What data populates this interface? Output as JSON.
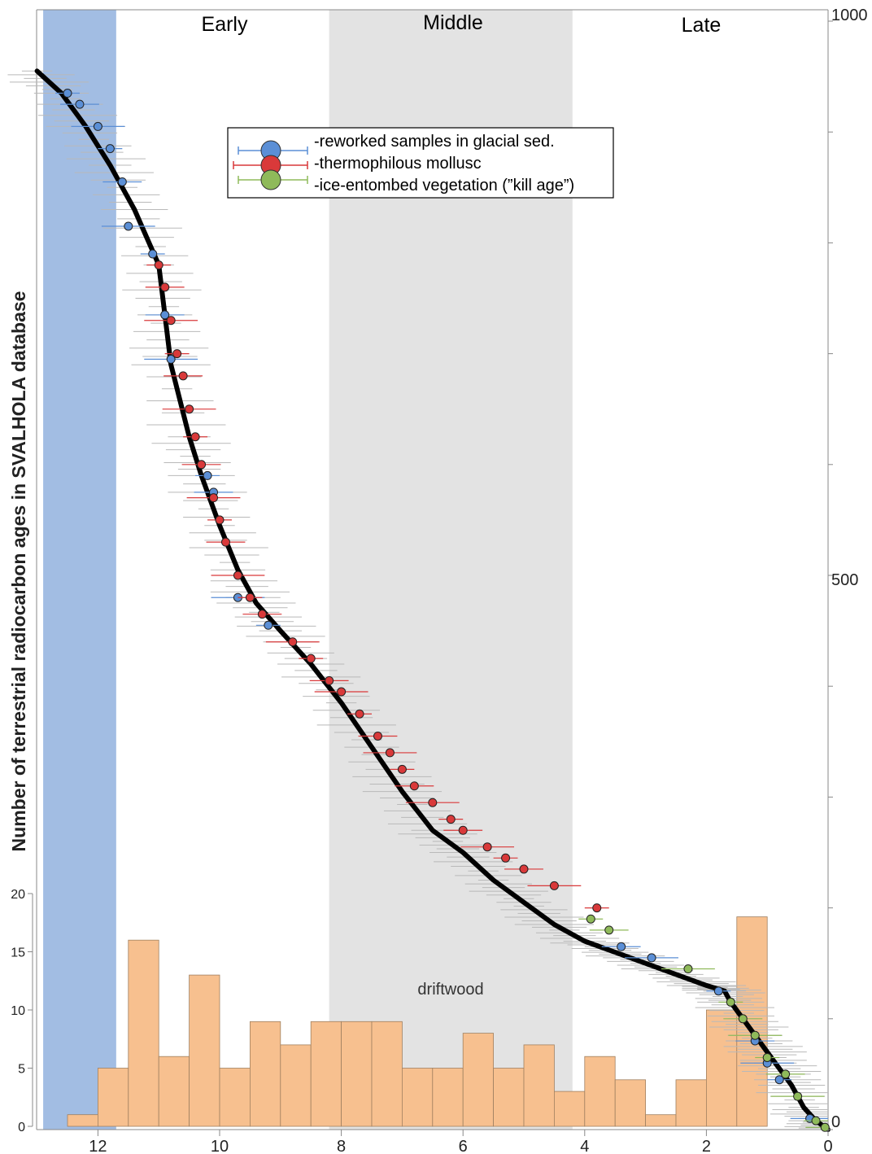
{
  "chart_data": {
    "type": "scatter",
    "ylabel": "Number of terrestrial radiocarbon ages in SVALHOLA database",
    "x_ticks": [
      "12",
      "10",
      "8",
      "6",
      "4",
      "2",
      "0"
    ],
    "xlim": [
      13,
      0
    ],
    "right_y_ticks": [
      "1000",
      "500",
      "0"
    ],
    "ylim": [
      0,
      1000
    ],
    "hist_y_ticks": [
      "0",
      "5",
      "10",
      "15",
      "20"
    ],
    "periods": [
      {
        "label": "Early",
        "from": 13,
        "to": 8.2
      },
      {
        "label": "Middle",
        "from": 8.2,
        "to": 4.2
      },
      {
        "label": "Late",
        "from": 4.2,
        "to": 0
      }
    ],
    "blue_band": {
      "from": 12.9,
      "to": 11.7,
      "color": "#a2bde3"
    },
    "middle_band_color": "#e3e3e3",
    "annotation": "driftwood",
    "legend": [
      {
        "label": "-reworked samples in glacial sed.",
        "color": "#5b8fd6"
      },
      {
        "label": "-thermophilous mollusc",
        "color": "#d9393a"
      },
      {
        "label": "-ice-entombed vegetation (”kill age”)",
        "color": "#8fba5a"
      }
    ],
    "cumulative_curve": {
      "x": [
        13.0,
        12.6,
        12.2,
        11.8,
        11.4,
        11.0,
        10.9,
        10.8,
        10.5,
        10.3,
        10.0,
        9.7,
        9.4,
        9.0,
        8.5,
        8.0,
        7.5,
        7.0,
        6.5,
        6.0,
        5.5,
        5.0,
        4.5,
        4.0,
        3.5,
        3.0,
        2.5,
        2.0,
        1.7,
        1.6,
        1.4,
        1.2,
        1.0,
        0.8,
        0.6,
        0.4,
        0.2,
        0.0
      ],
      "y": [
        955,
        935,
        905,
        870,
        830,
        780,
        735,
        690,
        625,
        590,
        545,
        505,
        475,
        450,
        420,
        385,
        345,
        305,
        270,
        250,
        225,
        205,
        185,
        170,
        160,
        150,
        140,
        130,
        125,
        115,
        100,
        85,
        70,
        55,
        40,
        20,
        8,
        0
      ],
      "color": "#000000"
    },
    "points": {
      "reworked": [
        [
          12.5,
          935
        ],
        [
          12.3,
          925
        ],
        [
          12.0,
          905
        ],
        [
          11.8,
          885
        ],
        [
          11.6,
          855
        ],
        [
          11.5,
          815
        ],
        [
          11.1,
          790
        ],
        [
          10.9,
          735
        ],
        [
          10.8,
          695
        ],
        [
          10.2,
          590
        ],
        [
          10.1,
          575
        ],
        [
          9.7,
          480
        ],
        [
          9.2,
          455
        ],
        [
          3.4,
          165
        ],
        [
          2.9,
          155
        ],
        [
          1.8,
          125
        ],
        [
          1.2,
          80
        ],
        [
          1.0,
          60
        ],
        [
          0.8,
          45
        ],
        [
          0.3,
          10
        ]
      ],
      "mollusc": [
        [
          11.0,
          780
        ],
        [
          10.9,
          760
        ],
        [
          10.8,
          730
        ],
        [
          10.7,
          700
        ],
        [
          10.6,
          680
        ],
        [
          10.5,
          650
        ],
        [
          10.4,
          625
        ],
        [
          10.3,
          600
        ],
        [
          10.1,
          570
        ],
        [
          10.0,
          550
        ],
        [
          9.9,
          530
        ],
        [
          9.7,
          500
        ],
        [
          9.5,
          480
        ],
        [
          9.3,
          465
        ],
        [
          8.8,
          440
        ],
        [
          8.5,
          425
        ],
        [
          8.2,
          405
        ],
        [
          8.0,
          395
        ],
        [
          7.7,
          375
        ],
        [
          7.4,
          355
        ],
        [
          7.2,
          340
        ],
        [
          7.0,
          325
        ],
        [
          6.8,
          310
        ],
        [
          6.5,
          295
        ],
        [
          6.2,
          280
        ],
        [
          6.0,
          270
        ],
        [
          5.6,
          255
        ],
        [
          5.3,
          245
        ],
        [
          5.0,
          235
        ],
        [
          4.5,
          220
        ],
        [
          3.8,
          200
        ]
      ],
      "vegetation": [
        [
          3.9,
          190
        ],
        [
          3.6,
          180
        ],
        [
          2.3,
          145
        ],
        [
          1.6,
          115
        ],
        [
          1.4,
          100
        ],
        [
          1.2,
          85
        ],
        [
          1.0,
          65
        ],
        [
          0.7,
          50
        ],
        [
          0.5,
          30
        ],
        [
          0.2,
          8
        ],
        [
          0.05,
          2
        ]
      ]
    },
    "histogram": {
      "bin_width": 0.5,
      "bins_start": [
        12.0,
        11.5,
        11.0,
        10.5,
        10.0,
        9.5,
        9.0,
        8.5,
        8.0,
        7.5,
        7.0,
        6.5,
        6.0,
        5.5,
        5.0,
        4.5,
        4.0,
        3.5,
        3.0,
        2.5,
        2.0,
        1.5,
        1.0,
        0.5
      ],
      "counts": [
        1,
        5,
        16,
        6,
        13,
        5,
        9,
        7,
        9,
        9,
        9,
        5,
        5,
        8,
        5,
        7,
        3,
        6,
        4,
        1,
        4,
        10,
        18,
        0
      ],
      "color": "#f7c08f",
      "edge_color": "#a08060"
    }
  }
}
